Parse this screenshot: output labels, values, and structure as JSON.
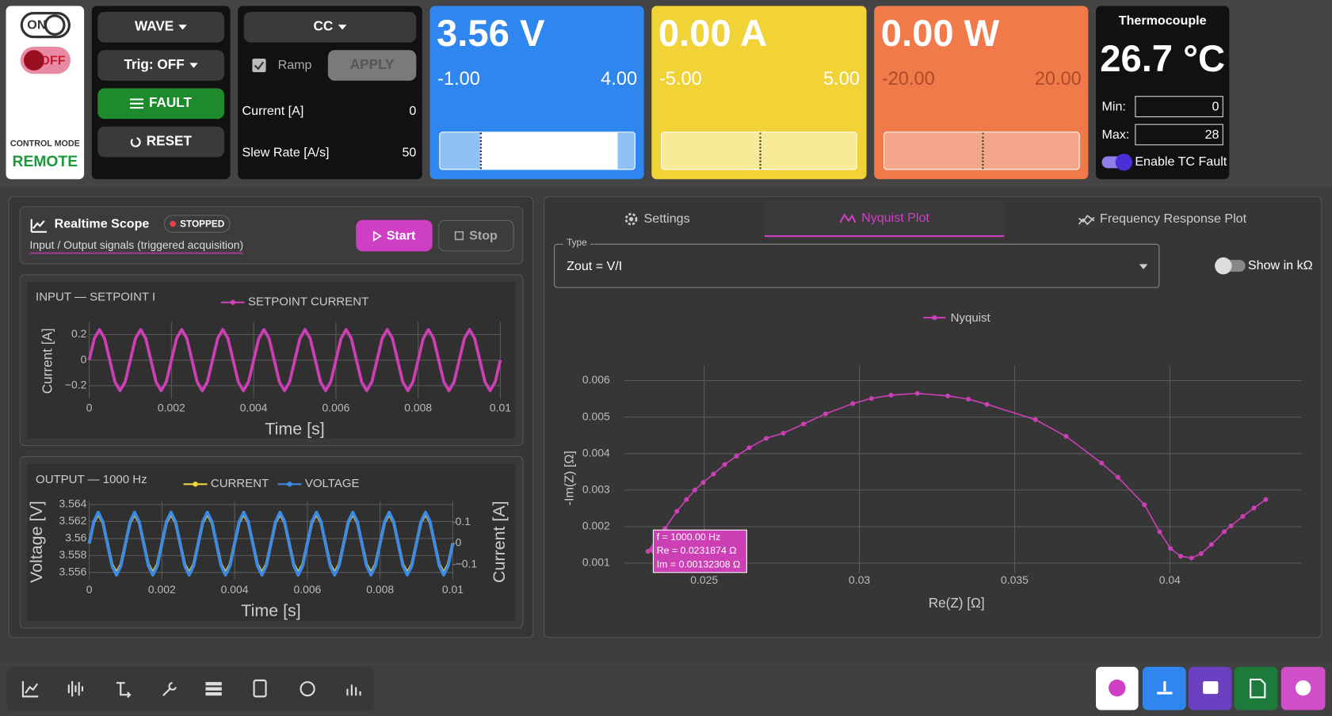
{
  "power": {
    "on": "ON",
    "off": "OFF",
    "mode_label": "CONTROL MODE",
    "mode": "REMOTE"
  },
  "wave": {
    "wave": "WAVE",
    "trig": "Trig: OFF",
    "fault": "FAULT",
    "reset": "RESET"
  },
  "cc": {
    "mode": "CC",
    "ramp": "Ramp",
    "apply": "APPLY",
    "rows": [
      {
        "label": "Current [A]",
        "value": 0
      },
      {
        "label": "Slew Rate [A/s]",
        "value": 50
      }
    ]
  },
  "meters": [
    {
      "reading": "3.56 V",
      "min": "-1.00",
      "max": "4.00"
    },
    {
      "reading": "0.00 A",
      "min": "-5.00",
      "max": "5.00"
    },
    {
      "reading": "0.00 W",
      "min": "-20.00",
      "max": "20.00"
    }
  ],
  "thermocouple": {
    "title": "Thermocouple",
    "reading": "26.7 °C",
    "min_label": "Min:",
    "min": 0,
    "max_label": "Max:",
    "max": 28,
    "fault": "Enable TC Fault"
  },
  "scope": {
    "title": "Realtime Scope",
    "status": "STOPPED",
    "subtitle": "Input / Output signals (triggered acquisition)",
    "start": "Start",
    "stop": "Stop"
  },
  "analysis": {
    "tabs": [
      "Settings",
      "Nyquist Plot",
      "Frequency Response Plot"
    ],
    "type_label": "Type",
    "type": "Zout = V/I",
    "toggle": "Show in kΩ",
    "tooltip": [
      "f = 1000.00 Hz",
      "Re = 0.0231874 Ω",
      "Im = 0.00132308 Ω"
    ]
  },
  "chart_data": [
    {
      "type": "line",
      "title": "INPUT — SETPOINT I",
      "xlabel": "Time [s]",
      "ylabel": "Current [A]",
      "grid": true,
      "x": [
        0,
        0.000125,
        0.00025,
        0.000375,
        0.0005,
        0.000625,
        0.00075,
        0.000875,
        0.001,
        0.001125,
        0.00125,
        0.001375,
        0.0015,
        0.001625,
        0.00175,
        0.001875,
        0.002,
        0.002125,
        0.00225,
        0.002375,
        0.0025,
        0.002625,
        0.00275,
        0.002875,
        0.003,
        0.003125,
        0.00325,
        0.003375,
        0.0035,
        0.003625,
        0.00375,
        0.003875,
        0.004,
        0.004125,
        0.00425,
        0.004375,
        0.0045,
        0.004625,
        0.00475,
        0.004875,
        0.005,
        0.005125,
        0.00525,
        0.005375,
        0.0055,
        0.005625,
        0.00575,
        0.005875,
        0.006,
        0.006125,
        0.00625,
        0.006375,
        0.0065,
        0.006625,
        0.00675,
        0.006875,
        0.007,
        0.007125,
        0.00725,
        0.007375,
        0.0075,
        0.007625,
        0.00775,
        0.007875,
        0.008,
        0.008125,
        0.00825,
        0.008375,
        0.0085,
        0.008625,
        0.00875,
        0.008875,
        0.009,
        0.009125,
        0.00925,
        0.009375,
        0.0095,
        0.009625,
        0.00975,
        0.009875,
        0.01
      ],
      "xlim": [
        0,
        0.01
      ],
      "xticks": [
        0,
        0.002,
        0.004,
        0.006,
        0.008,
        0.01
      ],
      "ylim": [
        -0.3,
        0.3
      ],
      "yticks": [
        0.2,
        0,
        {
          "value": -0.2,
          "label": "−0.2"
        }
      ],
      "series": [
        {
          "name": "SETPOINT CURRENT",
          "color": "#cc3fb5",
          "values": [
            0,
            0.17,
            0.24,
            0.17,
            0,
            -0.17,
            -0.24,
            -0.17,
            0,
            0.17,
            0.24,
            0.17,
            0,
            -0.17,
            -0.24,
            -0.17,
            0,
            0.17,
            0.24,
            0.17,
            0,
            -0.17,
            -0.24,
            -0.17,
            0,
            0.17,
            0.24,
            0.17,
            0,
            -0.17,
            -0.24,
            -0.17,
            0,
            0.17,
            0.24,
            0.17,
            0,
            -0.17,
            -0.24,
            -0.17,
            0,
            0.17,
            0.24,
            0.17,
            0,
            -0.17,
            -0.24,
            -0.17,
            0,
            0.17,
            0.24,
            0.17,
            0,
            -0.17,
            -0.24,
            -0.17,
            0,
            0.17,
            0.24,
            0.17,
            0,
            -0.17,
            -0.24,
            -0.17,
            0,
            0.17,
            0.24,
            0.17,
            0,
            -0.17,
            -0.24,
            -0.17,
            0,
            0.17,
            0.24,
            0.17,
            0,
            -0.17,
            -0.24,
            -0.17,
            0
          ]
        }
      ]
    },
    {
      "type": "line",
      "title": "OUTPUT — 1000 Hz",
      "xlabel": "Time [s]",
      "ylabel": "Voltage [V]",
      "y2label": "Current [A]",
      "grid": true,
      "x": [
        0,
        0.000125,
        0.00025,
        0.000375,
        0.0005,
        0.000625,
        0.00075,
        0.000875,
        0.001,
        0.001125,
        0.00125,
        0.001375,
        0.0015,
        0.001625,
        0.00175,
        0.001875,
        0.002,
        0.002125,
        0.00225,
        0.002375,
        0.0025,
        0.002625,
        0.00275,
        0.002875,
        0.003,
        0.003125,
        0.00325,
        0.003375,
        0.0035,
        0.003625,
        0.00375,
        0.003875,
        0.004,
        0.004125,
        0.00425,
        0.004375,
        0.0045,
        0.004625,
        0.00475,
        0.004875,
        0.005,
        0.005125,
        0.00525,
        0.005375,
        0.0055,
        0.005625,
        0.00575,
        0.005875,
        0.006,
        0.006125,
        0.00625,
        0.006375,
        0.0065,
        0.006625,
        0.00675,
        0.006875,
        0.007,
        0.007125,
        0.00725,
        0.007375,
        0.0075,
        0.007625,
        0.00775,
        0.007875,
        0.008,
        0.008125,
        0.00825,
        0.008375,
        0.0085,
        0.008625,
        0.00875,
        0.008875,
        0.009,
        0.009125,
        0.00925,
        0.009375,
        0.0095,
        0.009625,
        0.00975,
        0.009875,
        0.01
      ],
      "xlim": [
        0,
        0.01
      ],
      "xticks": [
        0,
        0.002,
        0.004,
        0.006,
        0.008,
        0.01
      ],
      "ylim": [
        3.5552,
        3.5644
      ],
      "yticks": [
        3.564,
        3.562,
        3.56,
        3.558,
        3.556
      ],
      "y2lim": [
        -0.17,
        0.2
      ],
      "y2ticks": [
        0.1,
        0,
        {
          "value": -0.1,
          "label": "−0.1"
        }
      ],
      "series": [
        {
          "name": "CURRENT",
          "color": "#f2d33a",
          "axis": "y2",
          "values": [
            0,
            0.1,
            0.14,
            0.1,
            0,
            -0.1,
            -0.14,
            -0.1,
            0,
            0.1,
            0.14,
            0.1,
            0,
            -0.1,
            -0.14,
            -0.1,
            0,
            0.1,
            0.14,
            0.1,
            0,
            -0.1,
            -0.14,
            -0.1,
            0,
            0.1,
            0.14,
            0.1,
            0,
            -0.1,
            -0.14,
            -0.1,
            0,
            0.1,
            0.14,
            0.1,
            0,
            -0.1,
            -0.14,
            -0.1,
            0,
            0.1,
            0.14,
            0.1,
            0,
            -0.1,
            -0.14,
            -0.1,
            0,
            0.1,
            0.14,
            0.1,
            0,
            -0.1,
            -0.14,
            -0.1,
            0,
            0.1,
            0.14,
            0.1,
            0,
            -0.1,
            -0.14,
            -0.1,
            0,
            0.1,
            0.14,
            0.1,
            0,
            -0.1,
            -0.14,
            -0.1,
            0,
            0.1,
            0.14,
            0.1,
            0,
            -0.1,
            -0.14,
            -0.1,
            0
          ]
        },
        {
          "name": "VOLTAGE",
          "color": "#3b8be6",
          "values": [
            3.5594,
            3.562,
            3.5631,
            3.562,
            3.5594,
            3.5568,
            3.5557,
            3.5568,
            3.5594,
            3.562,
            3.5631,
            3.562,
            3.5594,
            3.5568,
            3.5557,
            3.5568,
            3.5594,
            3.562,
            3.5631,
            3.562,
            3.5594,
            3.5568,
            3.5557,
            3.5568,
            3.5594,
            3.562,
            3.5631,
            3.562,
            3.5594,
            3.5568,
            3.5557,
            3.5568,
            3.5594,
            3.562,
            3.5631,
            3.562,
            3.5594,
            3.5568,
            3.5557,
            3.5568,
            3.5594,
            3.562,
            3.5631,
            3.562,
            3.5594,
            3.5568,
            3.5557,
            3.5568,
            3.5594,
            3.562,
            3.5631,
            3.562,
            3.5594,
            3.5568,
            3.5557,
            3.5568,
            3.5594,
            3.562,
            3.5631,
            3.562,
            3.5594,
            3.5568,
            3.5557,
            3.5568,
            3.5594,
            3.562,
            3.5631,
            3.562,
            3.5594,
            3.5568,
            3.5557,
            3.5568,
            3.5594,
            3.562,
            3.5631,
            3.562,
            3.5594,
            3.5568,
            3.5557,
            3.5568,
            3.5594
          ]
        }
      ]
    },
    {
      "type": "line",
      "markers": true,
      "xlabel": "Re(Z) [Ω]",
      "ylabel": "-Im(Z) [Ω]",
      "grid": true,
      "x": [
        0.0231874,
        0.02374,
        0.02412,
        0.02443,
        0.0247,
        0.02497,
        0.0253,
        0.02566,
        0.02604,
        0.02645,
        0.027,
        0.02755,
        0.0282,
        0.02891,
        0.02979,
        0.03039,
        0.03102,
        0.03187,
        0.03285,
        0.03351,
        0.03411,
        0.03567,
        0.03666,
        0.0378,
        0.03833,
        0.03918,
        0.03967,
        0.04002,
        0.04035,
        0.0407,
        0.04101,
        0.04134,
        0.04175,
        0.04197,
        0.04235,
        0.04271,
        0.04309
      ],
      "xlim": [
        0.02243,
        0.04424
      ],
      "xticks": [
        0.025,
        0.03,
        0.035,
        0.04
      ],
      "ylim": [
        0.00072,
        0.00642
      ],
      "yticks": [
        0.001,
        0.002,
        0.003,
        0.004,
        0.005,
        0.006
      ],
      "series": [
        {
          "name": "Nyquist",
          "color": "#cc3fb5",
          "values": [
            0.00132308,
            0.00195,
            0.00242,
            0.00274,
            0.003,
            0.00321,
            0.00344,
            0.0037,
            0.00393,
            0.00416,
            0.00442,
            0.00456,
            0.00481,
            0.00509,
            0.00537,
            0.00551,
            0.0056,
            0.00565,
            0.00558,
            0.00549,
            0.00535,
            0.00493,
            0.00447,
            0.00374,
            0.00335,
            0.0026,
            0.00186,
            0.0014,
            0.00119,
            0.00114,
            0.00126,
            0.00151,
            0.00186,
            0.00202,
            0.00228,
            0.00251,
            0.00274
          ]
        }
      ]
    }
  ]
}
